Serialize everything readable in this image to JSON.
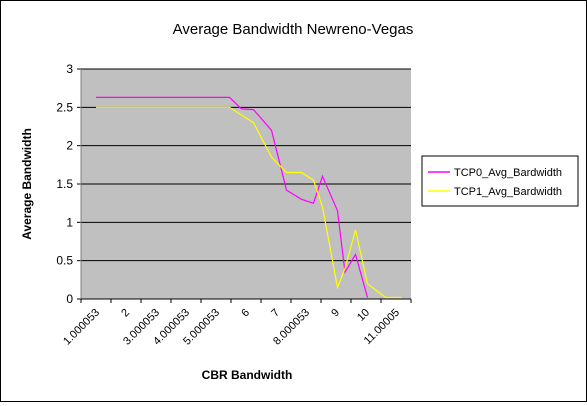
{
  "colors": {
    "plot_bg": "#c0c0c0",
    "gridline": "#000000",
    "series1": "#ff00ff",
    "series2": "#ffff00",
    "frame": "#000000"
  },
  "chart_data": {
    "type": "line",
    "title": "Average Bandwidth Newreno-Vegas",
    "xlabel": "CBR Bandwidth",
    "ylabel": "Average Bandwidth",
    "ylim": [
      0,
      3
    ],
    "y_ticks": [
      "0",
      "0.5",
      "1",
      "1.5",
      "2",
      "2.5",
      "3"
    ],
    "x_ticks": [
      "1.000053",
      "2",
      "3.000053",
      "4.000053",
      "5.000053",
      "6",
      "7",
      "8.000053",
      "9",
      "10",
      "11.00005"
    ],
    "grid": "horizontal",
    "legend": "right",
    "x": [
      1,
      2,
      3,
      4,
      5,
      5.45,
      5.85,
      6.25,
      6.85,
      7.35,
      7.85,
      8.25,
      8.55,
      9.05,
      9.3,
      9.65,
      10.05,
      10.65,
      11.2
    ],
    "series": [
      {
        "name": "TCP0_Avg_Bardwidth",
        "color": "#ff00ff",
        "values": [
          2.63,
          2.63,
          2.63,
          2.63,
          2.63,
          2.63,
          2.48,
          2.47,
          2.2,
          1.42,
          1.3,
          1.25,
          1.6,
          1.15,
          0.35,
          0.58,
          0.02,
          null,
          null
        ]
      },
      {
        "name": "TCP1_Avg_Bardwidth",
        "color": "#ffff00",
        "values": [
          2.5,
          2.5,
          2.5,
          2.5,
          2.5,
          2.5,
          2.4,
          2.3,
          1.85,
          1.65,
          1.65,
          1.55,
          1.2,
          0.15,
          0.4,
          0.9,
          0.2,
          0.02,
          0.02
        ]
      }
    ]
  }
}
